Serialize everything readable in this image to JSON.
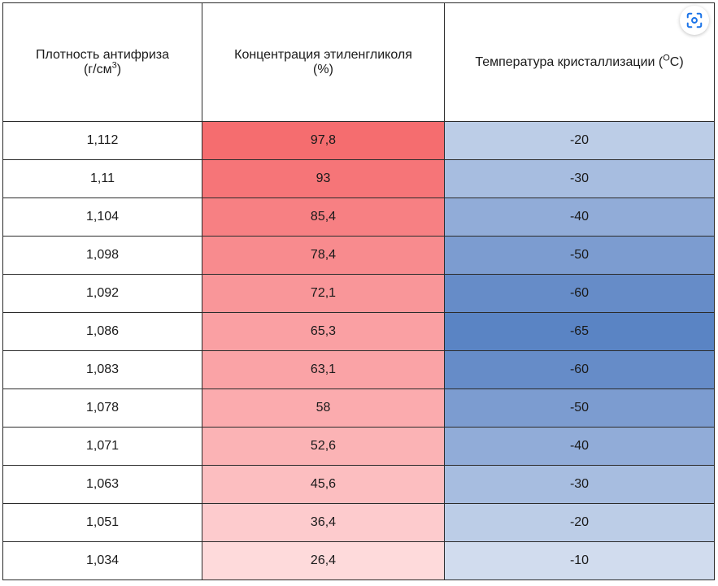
{
  "table": {
    "headers": {
      "density": {
        "main": "Плотность антифриза",
        "unit_pre": "(г/см",
        "unit_sup": "3",
        "unit_post": ")"
      },
      "concentration": {
        "main": "Концентрация этиленгликоля",
        "unit": "(%)"
      },
      "temperature": {
        "pre": "Температура кристаллизации (",
        "sup": "O",
        "post": "C)"
      }
    },
    "rows": [
      {
        "density": "1,112",
        "concentration": "97,8",
        "temperature": "-20",
        "conc_color": "#f56d6f",
        "temp_color": "#bccde7"
      },
      {
        "density": "1,11",
        "concentration": "93",
        "temperature": "-30",
        "conc_color": "#f67578",
        "temp_color": "#a7bde0"
      },
      {
        "density": "1,104",
        "concentration": "85,4",
        "temperature": "-40",
        "conc_color": "#f78083",
        "temp_color": "#91acd8"
      },
      {
        "density": "1,098",
        "concentration": "78,4",
        "temperature": "-50",
        "conc_color": "#f88b8e",
        "temp_color": "#7c9cd0"
      },
      {
        "density": "1,092",
        "concentration": "72,1",
        "temperature": "-60",
        "conc_color": "#f99699",
        "temp_color": "#668cc8"
      },
      {
        "density": "1,086",
        "concentration": "65,3",
        "temperature": "-65",
        "conc_color": "#faa0a3",
        "temp_color": "#5a84c4"
      },
      {
        "density": "1,083",
        "concentration": "63,1",
        "temperature": "-60",
        "conc_color": "#faa3a6",
        "temp_color": "#668cc8"
      },
      {
        "density": "1,078",
        "concentration": "58",
        "temperature": "-50",
        "conc_color": "#fbabae",
        "temp_color": "#7c9cd0"
      },
      {
        "density": "1,071",
        "concentration": "52,6",
        "temperature": "-40",
        "conc_color": "#fbb3b5",
        "temp_color": "#91acd8"
      },
      {
        "density": "1,063",
        "concentration": "45,6",
        "temperature": "-30",
        "conc_color": "#fcbec0",
        "temp_color": "#a7bde0"
      },
      {
        "density": "1,051",
        "concentration": "36,4",
        "temperature": "-20",
        "conc_color": "#fdcbcd",
        "temp_color": "#bccde7"
      },
      {
        "density": "1,034",
        "concentration": "26,4",
        "temperature": "-10",
        "conc_color": "#fedadb",
        "temp_color": "#d1dcee"
      }
    ]
  },
  "overlay": {
    "icon": "scan-icon",
    "accent": "#1a73e8"
  }
}
